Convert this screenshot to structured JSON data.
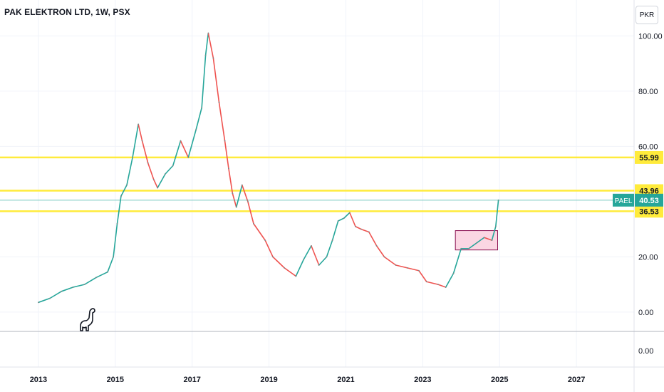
{
  "header": {
    "title": "PAK ELEKTRON LTD, 1W, PSX",
    "currency_label": "PKR"
  },
  "colors": {
    "level_line": "#ffeb3b",
    "up": "#26a69a",
    "down": "#ef5350",
    "ticker_badge": "#26a69a",
    "range_box_fill": "#f8bbd0",
    "range_box_stroke": "#880e4f"
  },
  "logo_icon": "dinosaur-icon",
  "chart_data": {
    "type": "line",
    "x_label": "",
    "y_label": "",
    "x_ticks": [
      "2013",
      "2015",
      "2017",
      "2019",
      "2021",
      "2023",
      "2025",
      "2027"
    ],
    "y_ticks": [
      "100.00",
      "80.00",
      "60.00",
      "20.00",
      "0.00"
    ],
    "lower_pane_tick": "0.00",
    "x_range": [
      2012,
      2028.5
    ],
    "y_range": [
      -7,
      113
    ],
    "series": [
      {
        "values": [
          [
            2013.0,
            3.5
          ],
          [
            2013.3,
            5.0
          ],
          [
            2013.6,
            7.5
          ],
          [
            2013.9,
            9.0
          ],
          [
            2014.2,
            10.0
          ],
          [
            2014.5,
            12.5
          ],
          [
            2014.8,
            14.5
          ],
          [
            2014.95,
            20.0
          ],
          [
            2015.05,
            32.0
          ],
          [
            2015.15,
            42.0
          ],
          [
            2015.3,
            46.0
          ],
          [
            2015.45,
            56.0
          ],
          [
            2015.6,
            68.0
          ],
          [
            2015.7,
            62.0
          ],
          [
            2015.85,
            54.0
          ],
          [
            2016.0,
            48.0
          ],
          [
            2016.1,
            45.0
          ],
          [
            2016.3,
            50.0
          ],
          [
            2016.5,
            53.0
          ],
          [
            2016.7,
            62.0
          ],
          [
            2016.9,
            56.0
          ],
          [
            2017.1,
            66.0
          ],
          [
            2017.25,
            74.0
          ],
          [
            2017.35,
            93.0
          ],
          [
            2017.42,
            101.0
          ],
          [
            2017.55,
            92.0
          ],
          [
            2017.7,
            76.0
          ],
          [
            2017.85,
            62.0
          ],
          [
            2017.95,
            52.0
          ],
          [
            2018.05,
            43.0
          ],
          [
            2018.15,
            38.0
          ],
          [
            2018.3,
            46.0
          ],
          [
            2018.45,
            40.0
          ],
          [
            2018.6,
            32.0
          ],
          [
            2018.9,
            26.0
          ],
          [
            2019.1,
            20.0
          ],
          [
            2019.4,
            16.0
          ],
          [
            2019.7,
            13.0
          ],
          [
            2019.9,
            19.0
          ],
          [
            2020.1,
            24.0
          ],
          [
            2020.3,
            17.0
          ],
          [
            2020.5,
            20.0
          ],
          [
            2020.65,
            26.0
          ],
          [
            2020.8,
            33.0
          ],
          [
            2020.95,
            34.0
          ],
          [
            2021.1,
            36.0
          ],
          [
            2021.25,
            31.0
          ],
          [
            2021.4,
            30.0
          ],
          [
            2021.6,
            29.0
          ],
          [
            2021.8,
            24.0
          ],
          [
            2022.0,
            20.0
          ],
          [
            2022.3,
            17.0
          ],
          [
            2022.6,
            16.0
          ],
          [
            2022.9,
            15.0
          ],
          [
            2023.1,
            11.0
          ],
          [
            2023.4,
            10.0
          ],
          [
            2023.6,
            9.0
          ],
          [
            2023.8,
            14.0
          ],
          [
            2024.0,
            23.0
          ],
          [
            2024.2,
            23.0
          ],
          [
            2024.4,
            25.0
          ],
          [
            2024.6,
            27.0
          ],
          [
            2024.8,
            26.0
          ],
          [
            2024.9,
            31.0
          ],
          [
            2024.97,
            40.53
          ]
        ]
      }
    ],
    "horizontal_levels": [
      "55.99",
      "43.96",
      "36.53"
    ],
    "ticker": {
      "symbol": "PAEL",
      "last_price": "40.53",
      "last_value": 40.53
    },
    "range_box": {
      "x_from": 2023.85,
      "x_to": 2024.95,
      "y_from": 22.5,
      "y_to": 29.5
    }
  }
}
